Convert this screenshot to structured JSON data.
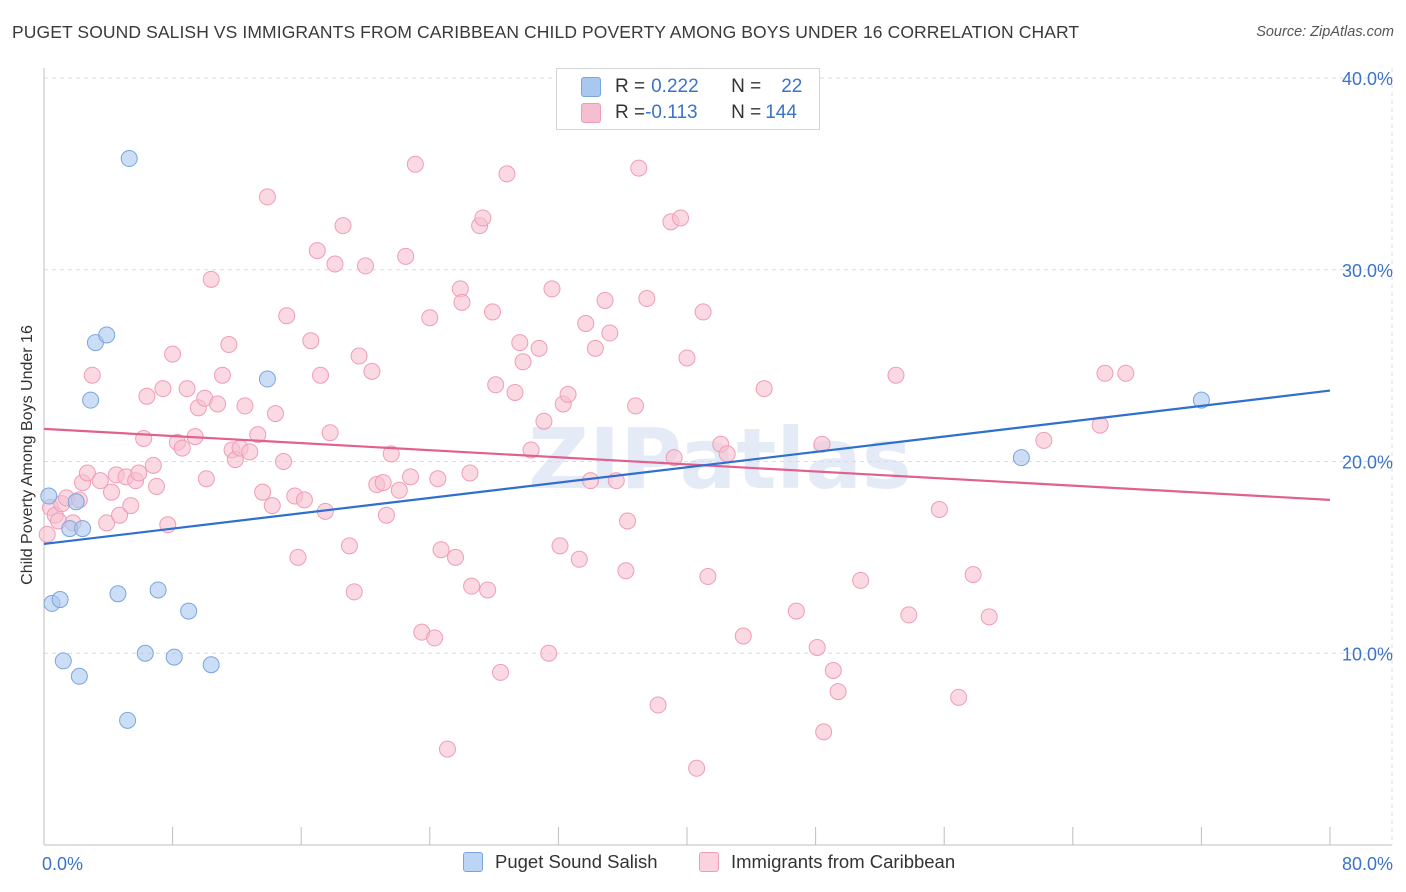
{
  "title": "PUGET SOUND SALISH VS IMMIGRANTS FROM CARIBBEAN CHILD POVERTY AMONG BOYS UNDER 16 CORRELATION CHART",
  "source": "Source: ZipAtlas.com",
  "watermark": "ZIPatlas",
  "colors": {
    "blue_fill": "#a9c8f0",
    "blue_stroke": "#7aa5de",
    "blue_line": "#2e6fd0",
    "pink_fill": "#f6bfd0",
    "pink_stroke": "#ef9db7",
    "pink_line": "#e0608e",
    "tick_label": "#3b73c8",
    "grid": "#dcdcdc"
  },
  "legend": {
    "rows": [
      {
        "r_label": "R = ",
        "r_value": "0.222",
        "n_label": "N = ",
        "n_value": "22"
      },
      {
        "r_label": "R = ",
        "r_value": "-0.113",
        "n_label": "N = ",
        "n_value": "144"
      }
    ]
  },
  "chart_data": {
    "type": "scatter",
    "title": "PUGET SOUND SALISH VS IMMIGRANTS FROM CARIBBEAN CHILD POVERTY AMONG BOYS UNDER 16 CORRELATION CHART",
    "xlabel": "",
    "ylabel": "Child Poverty Among Boys Under 16",
    "xlim": [
      0,
      80
    ],
    "ylim": [
      0,
      40
    ],
    "x_tick_labels": [
      "0.0%",
      "80.0%"
    ],
    "y_ticks": [
      10,
      20,
      30,
      40
    ],
    "y_tick_labels": [
      "10.0%",
      "20.0%",
      "30.0%",
      "40.0%"
    ],
    "grid": true,
    "legend_position": "top-center",
    "series": [
      {
        "name": "Puget Sound Salish",
        "color": "#a9c8f0",
        "trend": {
          "x": [
            0,
            80
          ],
          "y": [
            15.7,
            23.7
          ]
        },
        "points": [
          [
            0.3,
            18.2
          ],
          [
            0.5,
            12.6
          ],
          [
            1.0,
            12.8
          ],
          [
            1.2,
            9.6
          ],
          [
            1.6,
            16.5
          ],
          [
            2.0,
            17.9
          ],
          [
            2.2,
            8.8
          ],
          [
            2.4,
            16.5
          ],
          [
            2.9,
            23.2
          ],
          [
            3.2,
            26.2
          ],
          [
            3.9,
            26.6
          ],
          [
            4.6,
            13.1
          ],
          [
            5.2,
            6.5
          ],
          [
            5.3,
            35.8
          ],
          [
            6.3,
            10.0
          ],
          [
            7.1,
            13.3
          ],
          [
            8.1,
            9.8
          ],
          [
            9.0,
            12.2
          ],
          [
            10.4,
            9.4
          ],
          [
            13.9,
            24.3
          ],
          [
            60.8,
            20.2
          ],
          [
            72.0,
            23.2
          ]
        ]
      },
      {
        "name": "Immigrants from Caribbean",
        "color": "#f6bfd0",
        "trend": {
          "x": [
            0,
            80
          ],
          "y": [
            21.7,
            18.0
          ]
        },
        "points": [
          [
            0.2,
            16.2
          ],
          [
            0.4,
            17.6
          ],
          [
            0.7,
            17.2
          ],
          [
            0.9,
            16.9
          ],
          [
            1.1,
            17.8
          ],
          [
            1.4,
            18.1
          ],
          [
            1.8,
            16.8
          ],
          [
            2.2,
            18.0
          ],
          [
            2.4,
            18.9
          ],
          [
            2.7,
            19.4
          ],
          [
            3.0,
            24.5
          ],
          [
            3.5,
            19.0
          ],
          [
            3.9,
            16.8
          ],
          [
            4.2,
            18.4
          ],
          [
            4.5,
            19.3
          ],
          [
            4.7,
            17.2
          ],
          [
            5.1,
            19.2
          ],
          [
            5.4,
            17.7
          ],
          [
            5.7,
            19.0
          ],
          [
            5.9,
            19.4
          ],
          [
            6.2,
            21.2
          ],
          [
            6.4,
            23.4
          ],
          [
            6.8,
            19.8
          ],
          [
            7.0,
            18.7
          ],
          [
            7.4,
            23.8
          ],
          [
            7.7,
            16.7
          ],
          [
            8.0,
            25.6
          ],
          [
            8.3,
            21.0
          ],
          [
            8.6,
            20.7
          ],
          [
            8.9,
            23.8
          ],
          [
            9.4,
            21.3
          ],
          [
            9.6,
            22.8
          ],
          [
            10.0,
            23.3
          ],
          [
            10.1,
            19.1
          ],
          [
            10.4,
            29.5
          ],
          [
            10.8,
            23.0
          ],
          [
            11.1,
            24.5
          ],
          [
            11.5,
            26.1
          ],
          [
            11.7,
            20.6
          ],
          [
            11.9,
            20.1
          ],
          [
            12.2,
            20.7
          ],
          [
            12.5,
            22.9
          ],
          [
            12.8,
            20.5
          ],
          [
            13.3,
            21.4
          ],
          [
            13.6,
            18.4
          ],
          [
            13.9,
            33.8
          ],
          [
            14.2,
            17.7
          ],
          [
            14.4,
            22.5
          ],
          [
            14.9,
            20.0
          ],
          [
            15.1,
            27.6
          ],
          [
            15.6,
            18.2
          ],
          [
            15.8,
            15.0
          ],
          [
            16.2,
            18.0
          ],
          [
            16.6,
            26.3
          ],
          [
            17.0,
            31.0
          ],
          [
            17.2,
            24.5
          ],
          [
            17.5,
            17.4
          ],
          [
            17.8,
            21.5
          ],
          [
            18.1,
            30.3
          ],
          [
            18.6,
            32.3
          ],
          [
            19.0,
            15.6
          ],
          [
            19.3,
            13.2
          ],
          [
            19.6,
            25.5
          ],
          [
            20.0,
            30.2
          ],
          [
            20.4,
            24.7
          ],
          [
            20.7,
            18.8
          ],
          [
            21.1,
            18.9
          ],
          [
            21.3,
            17.2
          ],
          [
            21.6,
            20.4
          ],
          [
            22.1,
            18.5
          ],
          [
            22.5,
            30.7
          ],
          [
            22.8,
            19.2
          ],
          [
            23.1,
            35.5
          ],
          [
            23.5,
            11.1
          ],
          [
            24.0,
            27.5
          ],
          [
            24.3,
            10.8
          ],
          [
            24.5,
            19.1
          ],
          [
            24.7,
            15.4
          ],
          [
            25.1,
            5.0
          ],
          [
            25.6,
            15.0
          ],
          [
            25.9,
            29.0
          ],
          [
            26.0,
            28.3
          ],
          [
            26.5,
            19.4
          ],
          [
            26.6,
            13.5
          ],
          [
            27.1,
            32.3
          ],
          [
            27.3,
            32.7
          ],
          [
            27.6,
            13.3
          ],
          [
            27.9,
            27.8
          ],
          [
            28.1,
            24.0
          ],
          [
            28.4,
            9.0
          ],
          [
            28.8,
            35.0
          ],
          [
            29.3,
            23.6
          ],
          [
            29.6,
            26.2
          ],
          [
            29.8,
            25.2
          ],
          [
            30.3,
            20.6
          ],
          [
            30.8,
            25.9
          ],
          [
            31.1,
            22.1
          ],
          [
            31.4,
            10.0
          ],
          [
            31.6,
            29.0
          ],
          [
            32.1,
            15.6
          ],
          [
            32.3,
            23.0
          ],
          [
            32.6,
            23.5
          ],
          [
            33.3,
            14.9
          ],
          [
            33.7,
            27.2
          ],
          [
            34.0,
            19.0
          ],
          [
            34.3,
            25.9
          ],
          [
            34.9,
            28.4
          ],
          [
            35.2,
            26.7
          ],
          [
            35.6,
            19.0
          ],
          [
            36.2,
            14.3
          ],
          [
            36.3,
            16.9
          ],
          [
            36.8,
            22.9
          ],
          [
            37.0,
            35.3
          ],
          [
            37.5,
            28.5
          ],
          [
            38.2,
            7.3
          ],
          [
            39.0,
            32.5
          ],
          [
            39.2,
            20.2
          ],
          [
            39.6,
            32.7
          ],
          [
            40.0,
            25.4
          ],
          [
            40.6,
            4.0
          ],
          [
            41.0,
            27.8
          ],
          [
            41.3,
            14.0
          ],
          [
            42.1,
            20.9
          ],
          [
            42.5,
            20.4
          ],
          [
            43.5,
            10.9
          ],
          [
            44.8,
            23.8
          ],
          [
            46.8,
            12.2
          ],
          [
            48.1,
            10.3
          ],
          [
            48.4,
            20.9
          ],
          [
            49.1,
            9.1
          ],
          [
            49.4,
            8.0
          ],
          [
            48.5,
            5.9
          ],
          [
            50.8,
            13.8
          ],
          [
            53.0,
            24.5
          ],
          [
            53.8,
            12.0
          ],
          [
            55.7,
            17.5
          ],
          [
            56.9,
            7.7
          ],
          [
            57.8,
            14.1
          ],
          [
            58.8,
            11.9
          ],
          [
            62.2,
            21.1
          ],
          [
            65.7,
            21.9
          ],
          [
            66.0,
            24.6
          ],
          [
            67.3,
            24.6
          ]
        ]
      }
    ]
  },
  "bottom_legend": [
    {
      "label": "Puget Sound Salish"
    },
    {
      "label": "Immigrants from Caribbean"
    }
  ]
}
